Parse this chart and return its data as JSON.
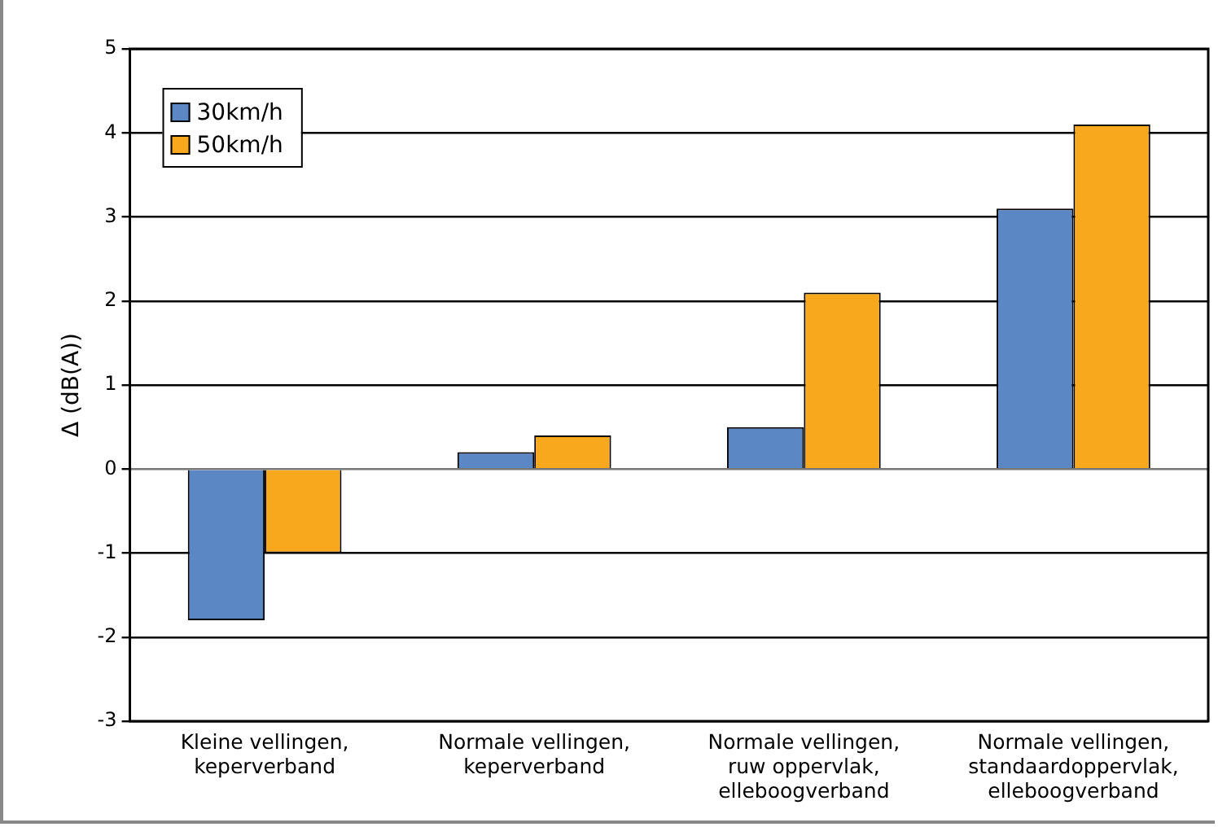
{
  "chart_data": {
    "type": "bar",
    "ylabel": "Δ (dB(A))",
    "categories": [
      "Kleine vellingen,\nkeperverband",
      "Normale vellingen,\nkeperverband",
      "Normale vellingen,\nruw oppervlak,\nelleboogverband",
      "Normale vellingen,\nstandaardoppervlak,\nelleboogverband"
    ],
    "series": [
      {
        "name": "30km/h",
        "color": "#5b87c5",
        "values": [
          -1.8,
          0.2,
          0.5,
          3.1
        ]
      },
      {
        "name": "50km/h",
        "color": "#f8a81c",
        "values": [
          -1.0,
          0.4,
          2.1,
          4.1
        ]
      }
    ],
    "ylim": [
      -3,
      5
    ],
    "yticks": [
      -3,
      -2,
      -1,
      0,
      1,
      2,
      3,
      4,
      5
    ],
    "grid": "y",
    "legend": "top left"
  }
}
